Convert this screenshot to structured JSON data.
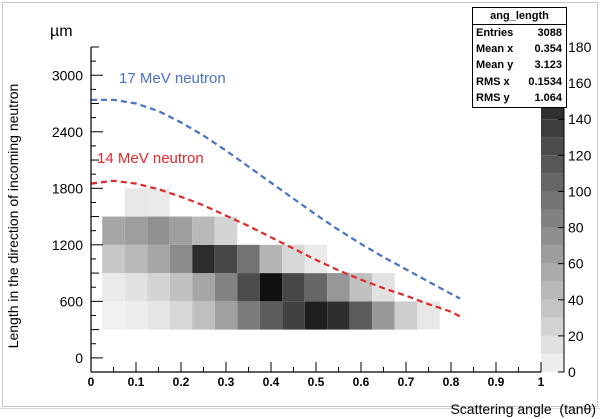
{
  "chart_data": {
    "type": "heatmap",
    "xlabel": "Scattering angle  (tanθ)",
    "ylabel": "Length in the direction of incoming neutron",
    "y_unit": "µm",
    "xlim": [
      0,
      1
    ],
    "ylim": [
      -150,
      3300
    ],
    "x_ticks": [
      "0",
      "0.1",
      "0.2",
      "0.3",
      "0.4",
      "0.5",
      "0.6",
      "0.7",
      "0.8",
      "0.9",
      "1"
    ],
    "y_ticks": [
      "0",
      "600",
      "1200",
      "1800",
      "2400",
      "3000"
    ],
    "z_ticks": [
      "0",
      "20",
      "40",
      "60",
      "80",
      "100",
      "120",
      "140",
      "160",
      "180"
    ],
    "zlim": [
      0,
      180
    ],
    "x_bin_width": 0.05,
    "y_bin_width": 300,
    "bins": [
      {
        "x": 0.05,
        "y": 450,
        "z": 4
      },
      {
        "x": 0.1,
        "y": 450,
        "z": 6
      },
      {
        "x": 0.15,
        "y": 450,
        "z": 12
      },
      {
        "x": 0.2,
        "y": 450,
        "z": 22
      },
      {
        "x": 0.25,
        "y": 450,
        "z": 40
      },
      {
        "x": 0.3,
        "y": 450,
        "z": 62
      },
      {
        "x": 0.35,
        "y": 450,
        "z": 90
      },
      {
        "x": 0.4,
        "y": 450,
        "z": 112
      },
      {
        "x": 0.45,
        "y": 450,
        "z": 132
      },
      {
        "x": 0.5,
        "y": 450,
        "z": 158
      },
      {
        "x": 0.55,
        "y": 450,
        "z": 146
      },
      {
        "x": 0.6,
        "y": 450,
        "z": 112
      },
      {
        "x": 0.65,
        "y": 450,
        "z": 68
      },
      {
        "x": 0.7,
        "y": 450,
        "z": 28
      },
      {
        "x": 0.75,
        "y": 450,
        "z": 10
      },
      {
        "x": 0.05,
        "y": 750,
        "z": 8
      },
      {
        "x": 0.1,
        "y": 750,
        "z": 14
      },
      {
        "x": 0.15,
        "y": 750,
        "z": 24
      },
      {
        "x": 0.2,
        "y": 750,
        "z": 38
      },
      {
        "x": 0.25,
        "y": 750,
        "z": 58
      },
      {
        "x": 0.3,
        "y": 750,
        "z": 84
      },
      {
        "x": 0.35,
        "y": 750,
        "z": 124
      },
      {
        "x": 0.4,
        "y": 750,
        "z": 168
      },
      {
        "x": 0.45,
        "y": 750,
        "z": 128
      },
      {
        "x": 0.5,
        "y": 750,
        "z": 104
      },
      {
        "x": 0.55,
        "y": 750,
        "z": 70
      },
      {
        "x": 0.6,
        "y": 750,
        "z": 38
      },
      {
        "x": 0.65,
        "y": 750,
        "z": 14
      },
      {
        "x": 0.05,
        "y": 1050,
        "z": 34
      },
      {
        "x": 0.1,
        "y": 1050,
        "z": 44
      },
      {
        "x": 0.15,
        "y": 1050,
        "z": 58
      },
      {
        "x": 0.2,
        "y": 1050,
        "z": 78
      },
      {
        "x": 0.25,
        "y": 1050,
        "z": 148
      },
      {
        "x": 0.3,
        "y": 1050,
        "z": 128
      },
      {
        "x": 0.35,
        "y": 1050,
        "z": 96
      },
      {
        "x": 0.4,
        "y": 1050,
        "z": 48
      },
      {
        "x": 0.45,
        "y": 1050,
        "z": 22
      },
      {
        "x": 0.5,
        "y": 1050,
        "z": 8
      },
      {
        "x": 0.05,
        "y": 1350,
        "z": 58
      },
      {
        "x": 0.1,
        "y": 1350,
        "z": 64
      },
      {
        "x": 0.15,
        "y": 1350,
        "z": 74
      },
      {
        "x": 0.2,
        "y": 1350,
        "z": 64
      },
      {
        "x": 0.25,
        "y": 1350,
        "z": 44
      },
      {
        "x": 0.3,
        "y": 1350,
        "z": 24
      },
      {
        "x": 0.1,
        "y": 1650,
        "z": 10
      },
      {
        "x": 0.15,
        "y": 1650,
        "z": 8
      }
    ],
    "curves": [
      {
        "name": "17 MeV neutron",
        "color": "#4a72c4",
        "style": "dashed",
        "x": [
          0,
          0.05,
          0.1,
          0.15,
          0.2,
          0.25,
          0.3,
          0.35,
          0.4,
          0.45,
          0.5,
          0.55,
          0.6,
          0.65,
          0.7,
          0.75,
          0.8,
          0.82
        ],
        "y": [
          2740,
          2740,
          2700,
          2620,
          2500,
          2360,
          2200,
          2030,
          1860,
          1690,
          1520,
          1360,
          1210,
          1070,
          940,
          810,
          680,
          630
        ]
      },
      {
        "name": "14 MeV neutron",
        "color": "#e02a2a",
        "style": "dashed",
        "x": [
          0,
          0.05,
          0.1,
          0.15,
          0.2,
          0.25,
          0.3,
          0.35,
          0.4,
          0.45,
          0.5,
          0.55,
          0.6,
          0.65,
          0.7,
          0.75,
          0.8,
          0.82
        ],
        "y": [
          1850,
          1880,
          1850,
          1790,
          1710,
          1620,
          1510,
          1400,
          1280,
          1160,
          1040,
          930,
          830,
          740,
          660,
          570,
          490,
          440
        ]
      }
    ],
    "stats": {
      "title": "ang_length",
      "rows": [
        {
          "label": "Entries",
          "value": "3088"
        },
        {
          "label": "Mean x",
          "value": "0.354"
        },
        {
          "label": "Mean y",
          "value": "3.123"
        },
        {
          "label": "RMS x",
          "value": "0.1534"
        },
        {
          "label": "RMS y",
          "value": "1.064"
        }
      ]
    }
  }
}
